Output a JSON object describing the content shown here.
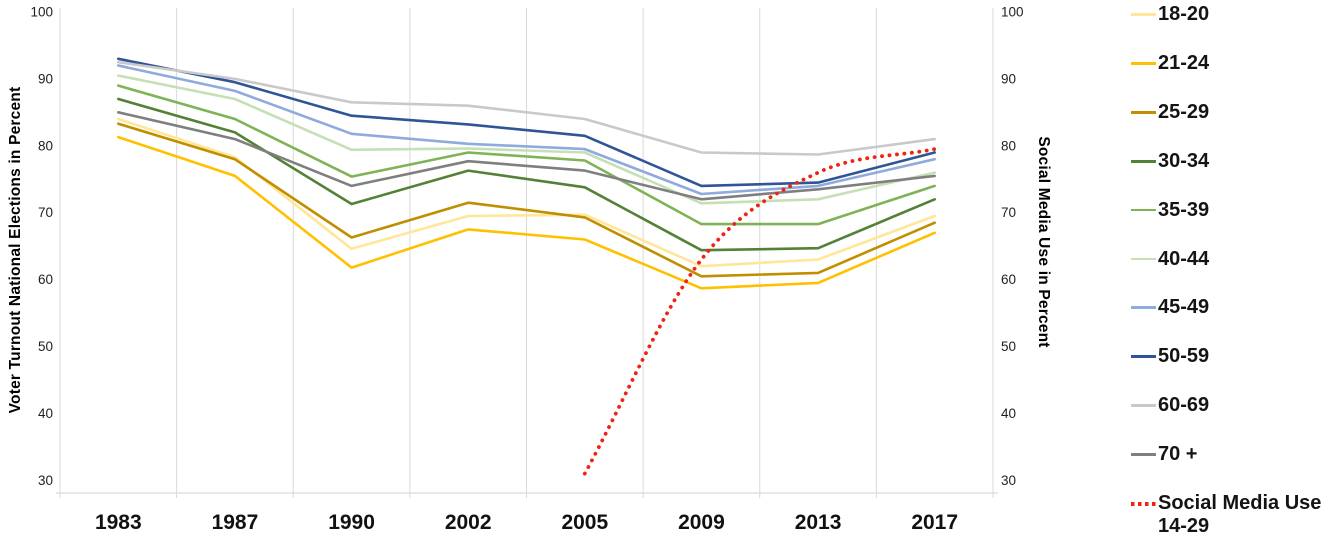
{
  "chart_data": {
    "type": "line",
    "title": "",
    "x_categories": [
      "1983",
      "1987",
      "1990",
      "2002",
      "2005",
      "2009",
      "2013",
      "2017"
    ],
    "left_axis": {
      "title": "Voter Turnout National Elections in Percent",
      "ticks": [
        100,
        90,
        80,
        70,
        60,
        50,
        40,
        30
      ],
      "range": [
        30,
        100
      ]
    },
    "right_axis": {
      "title": "Social Media Use in Percent",
      "ticks": [
        100,
        90,
        80,
        70,
        60,
        50,
        40,
        30
      ],
      "range": [
        30,
        100
      ]
    },
    "grid": "vertical-only",
    "grid_color": "#d9d9d9",
    "legend_position": "right",
    "series": [
      {
        "name": "18-20",
        "color": "#FFE699",
        "values": [
          84,
          78.3,
          64.6,
          69.5,
          69.7,
          62,
          63,
          69.5
        ]
      },
      {
        "name": "21-24",
        "color": "#FFC000",
        "values": [
          81.3,
          75.5,
          61.8,
          67.5,
          66,
          58.7,
          59.5,
          67
        ]
      },
      {
        "name": "25-29",
        "color": "#BF8F00",
        "values": [
          83.3,
          78,
          66.3,
          71.5,
          69.3,
          60.5,
          61,
          68.5
        ]
      },
      {
        "name": "30-34",
        "color": "#538135",
        "values": [
          87,
          82,
          71.3,
          76.3,
          73.8,
          64.4,
          64.7,
          72
        ]
      },
      {
        "name": "35-39",
        "color": "#7EB356",
        "values": [
          89,
          84,
          75.4,
          79,
          77.8,
          68.3,
          68.3,
          74
        ]
      },
      {
        "name": "40-44",
        "color": "#C5E0B4",
        "values": [
          90.5,
          87,
          79.4,
          79.6,
          79,
          71.4,
          72,
          76
        ]
      },
      {
        "name": "45-49",
        "color": "#8FAADC",
        "values": [
          92,
          88.2,
          81.8,
          80.3,
          79.5,
          72.8,
          74,
          78
        ]
      },
      {
        "name": "50-59",
        "color": "#2F5597",
        "values": [
          93,
          89.5,
          84.5,
          83.2,
          81.5,
          74,
          74.5,
          79
        ]
      },
      {
        "name": "60-69",
        "color": "#C9C9C9",
        "values": [
          92.5,
          90,
          86.5,
          86,
          84,
          79,
          78.7,
          81
        ]
      },
      {
        "name": "70 +",
        "color": "#7F7F7F",
        "values": [
          85,
          81,
          74,
          77.7,
          76.3,
          72,
          73.5,
          75.5
        ]
      },
      {
        "name": "Social Media Use 14-29",
        "legend_lines": [
          "Social Media Use",
          "14-29"
        ],
        "color": "#F02311",
        "style": "dotted",
        "smooth": true,
        "bold_label": true,
        "values": [
          null,
          null,
          null,
          null,
          31,
          63,
          76,
          79.5
        ]
      }
    ]
  }
}
